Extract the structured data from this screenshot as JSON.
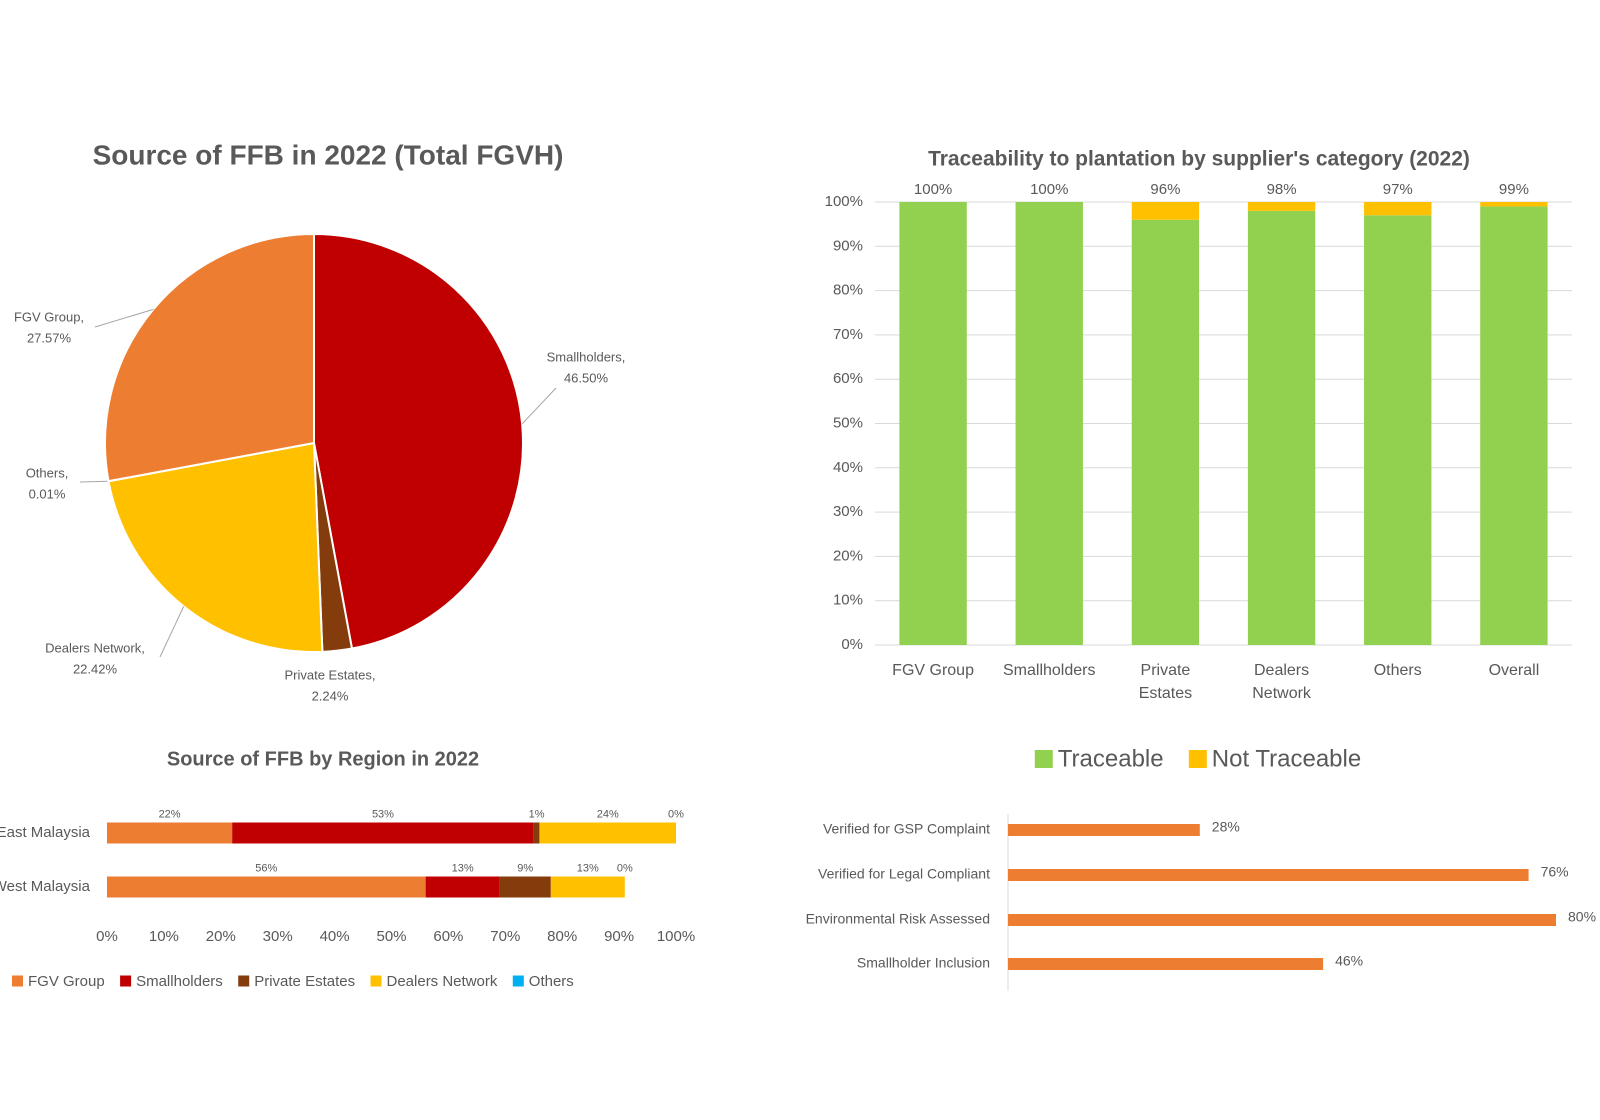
{
  "chart_data": [
    {
      "type": "pie",
      "title": "Source of FFB in 2022 (Total FGVH)",
      "categories": [
        "Smallholders,",
        "Private Estates,",
        "Dealers Network,",
        "Others,",
        "FGV Group,"
      ],
      "values": [
        46.5,
        2.24,
        22.42,
        0.01,
        27.57
      ],
      "value_labels": [
        "46.50%",
        "2.24%",
        "22.42%",
        "0.01%",
        "27.57%"
      ],
      "colors": [
        "#c00000",
        "#843c0c",
        "#ffc000",
        "#00b0f0",
        "#ed7d31"
      ]
    },
    {
      "type": "bar",
      "stacked": true,
      "title": "Traceability to plantation by supplier's category (2022)",
      "categories": [
        [
          "FGV Group"
        ],
        [
          "Smallholders"
        ],
        [
          "Private",
          "Estates"
        ],
        [
          "Dealers",
          "Network"
        ],
        [
          "Others"
        ],
        [
          "Overall"
        ]
      ],
      "series": [
        {
          "name": "Traceable",
          "color": "#92d050",
          "values": [
            100,
            100,
            96,
            98,
            97,
            99
          ],
          "value_labels": [
            "100%",
            "100%",
            "96%",
            "98%",
            "97%",
            "99%"
          ]
        },
        {
          "name": "Not Traceable",
          "color": "#ffc000",
          "values": [
            0,
            0,
            4,
            2,
            3,
            1
          ]
        }
      ],
      "ylim": [
        0,
        100
      ],
      "yticks": [
        {
          "value": 0,
          "label": "0%"
        },
        {
          "value": 10,
          "label": "10%"
        },
        {
          "value": 20,
          "label": "20%"
        },
        {
          "value": 30,
          "label": "30%"
        },
        {
          "value": 40,
          "label": "40%"
        },
        {
          "value": 50,
          "label": "50%"
        },
        {
          "value": 60,
          "label": "60%"
        },
        {
          "value": 70,
          "label": "70%"
        },
        {
          "value": 80,
          "label": "80%"
        },
        {
          "value": 90,
          "label": "90%"
        },
        {
          "value": 100,
          "label": "100%"
        }
      ],
      "grid": true,
      "legend": "bottom"
    },
    {
      "type": "hbar",
      "stacked": true,
      "title": "Source of FFB by Region in 2022",
      "categories": [
        "East Malaysia",
        "West Malaysia"
      ],
      "series": [
        {
          "name": "FGV Group",
          "color": "#ed7d31",
          "values": [
            22,
            56
          ],
          "value_labels": [
            "22%",
            "56%"
          ]
        },
        {
          "name": "Smallholders",
          "color": "#c00000",
          "values": [
            53,
            13
          ],
          "value_labels": [
            "53%",
            "13%"
          ]
        },
        {
          "name": "Private Estates",
          "color": "#843c0c",
          "values": [
            1,
            9
          ],
          "value_labels": [
            "1%",
            "9%"
          ]
        },
        {
          "name": "Dealers Network",
          "color": "#ffc000",
          "values": [
            24,
            13
          ],
          "value_labels": [
            "24%",
            "13%"
          ]
        },
        {
          "name": "Others",
          "color": "#00b0f0",
          "values": [
            0,
            0
          ],
          "value_labels": [
            "0%",
            "0%"
          ]
        }
      ],
      "xlim": [
        0,
        100
      ],
      "xticks": [
        {
          "value": 0,
          "label": "0%"
        },
        {
          "value": 10,
          "label": "10%"
        },
        {
          "value": 20,
          "label": "20%"
        },
        {
          "value": 30,
          "label": "30%"
        },
        {
          "value": 40,
          "label": "40%"
        },
        {
          "value": 50,
          "label": "50%"
        },
        {
          "value": 60,
          "label": "60%"
        },
        {
          "value": 70,
          "label": "70%"
        },
        {
          "value": 80,
          "label": "80%"
        },
        {
          "value": 90,
          "label": "90%"
        },
        {
          "value": 100,
          "label": "100%"
        }
      ],
      "legend": "bottom"
    },
    {
      "type": "hbar",
      "categories": [
        "Verified for GSP Complaint",
        "Verified for Legal Compliant",
        "Environmental Risk Assessed",
        "Smallholder Inclusion"
      ],
      "values": [
        28,
        76,
        80,
        46
      ],
      "value_labels": [
        "28%",
        "76%",
        "80%",
        "46%"
      ],
      "color": "#ed7d31",
      "xlim": [
        0,
        80
      ]
    }
  ]
}
